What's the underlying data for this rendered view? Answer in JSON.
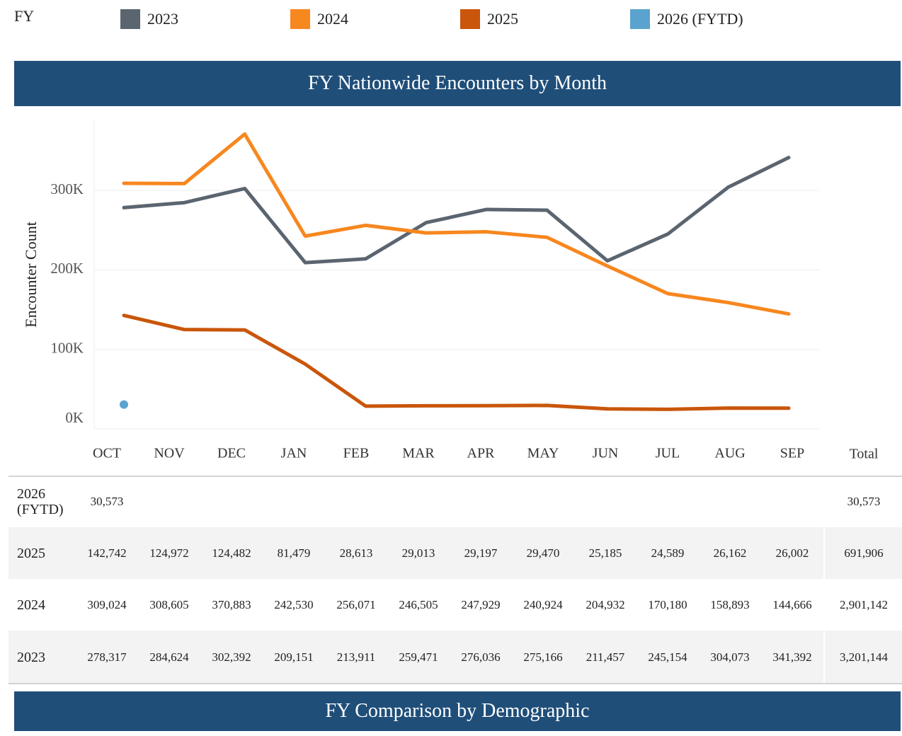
{
  "legend_title": "FY",
  "chart_data": {
    "type": "line",
    "title": "FY Nationwide Encounters by Month",
    "y_label": "Encounter Count",
    "categories": [
      "OCT",
      "NOV",
      "DEC",
      "JAN",
      "FEB",
      "MAR",
      "APR",
      "MAY",
      "JUN",
      "JUL",
      "AUG",
      "SEP"
    ],
    "series": [
      {
        "name": "2023",
        "color": "#5b6570",
        "values": [
          278317,
          284624,
          302392,
          209151,
          213911,
          259471,
          276036,
          275166,
          211457,
          245154,
          304073,
          341392
        ]
      },
      {
        "name": "2024",
        "color": "#f7871f",
        "values": [
          309024,
          308605,
          370883,
          242530,
          256071,
          246505,
          247929,
          240924,
          204932,
          170180,
          158893,
          144666
        ]
      },
      {
        "name": "2025",
        "color": "#c9560a",
        "values": [
          142742,
          124972,
          124482,
          81479,
          28613,
          29013,
          29197,
          29470,
          25185,
          24589,
          26162,
          26002
        ]
      },
      {
        "name": "2026 (FYTD)",
        "color": "#5ba3cf",
        "values": [
          30573,
          null,
          null,
          null,
          null,
          null,
          null,
          null,
          null,
          null,
          null,
          null
        ]
      }
    ],
    "ylim": [
      0,
      390000
    ],
    "yticks": [
      {
        "value": 0,
        "label": "0K"
      },
      {
        "value": 100000,
        "label": "100K"
      },
      {
        "value": 200000,
        "label": "200K"
      },
      {
        "value": 300000,
        "label": "300K"
      }
    ],
    "grid": true
  },
  "table": {
    "total_label": "Total",
    "rows": [
      {
        "label": "2026 (FYTD)",
        "cells": [
          "30,573",
          null,
          null,
          null,
          null,
          null,
          null,
          null,
          null,
          null,
          null,
          null
        ],
        "total": "30,573"
      },
      {
        "label": "2025",
        "cells": [
          "142,742",
          "124,972",
          "124,482",
          "81,479",
          "28,613",
          "29,013",
          "29,197",
          "29,470",
          "25,185",
          "24,589",
          "26,162",
          "26,002"
        ],
        "total": "691,906"
      },
      {
        "label": "2024",
        "cells": [
          "309,024",
          "308,605",
          "370,883",
          "242,530",
          "256,071",
          "246,505",
          "247,929",
          "240,924",
          "204,932",
          "170,180",
          "158,893",
          "144,666"
        ],
        "total": "2,901,142"
      },
      {
        "label": "2023",
        "cells": [
          "278,317",
          "284,624",
          "302,392",
          "209,151",
          "213,911",
          "259,471",
          "276,036",
          "275,166",
          "211,457",
          "245,154",
          "304,073",
          "341,392"
        ],
        "total": "3,201,144"
      }
    ]
  },
  "section_title": "FY Comparison by Demographic"
}
